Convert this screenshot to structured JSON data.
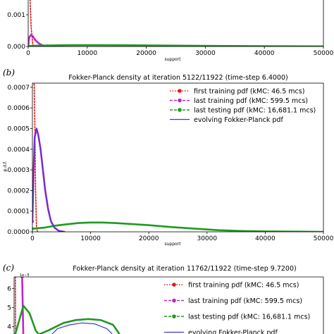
{
  "chart_data": [
    {
      "id": "a",
      "type": "line",
      "panel_label": "",
      "title": "",
      "xlabel": "support",
      "ylabel": "",
      "xlim": [
        0,
        50000
      ],
      "ylim": [
        0,
        0.0016
      ],
      "x_ticks": [
        0,
        10000,
        20000,
        30000,
        40000,
        50000
      ],
      "x_tick_labels": [
        "0",
        "10000",
        "20000",
        "30000",
        "40000",
        "50000"
      ],
      "y_ticks": [
        0,
        0.001
      ],
      "y_tick_labels": [
        "0.000",
        "0.001"
      ],
      "legend": [],
      "series": [
        {
          "name": "",
          "color": "#e41a1c",
          "dash": "2,2",
          "x": [
            0,
            150,
            300,
            500,
            800,
            1000
          ],
          "y": [
            0.0016,
            0.0016,
            0.0016,
            0.0006,
            3e-05,
            0
          ]
        },
        {
          "name": "",
          "color": "#c026c7",
          "x": [
            0,
            200,
            500,
            800,
            1200,
            1800,
            2500,
            3500,
            4500,
            6000
          ],
          "y": [
            0.0001,
            0.0003,
            0.00037,
            0.00032,
            0.0002,
            0.0001,
            3e-05,
            5e-06,
            0,
            0
          ]
        },
        {
          "name": "",
          "color": "#1f9a1f",
          "x": [
            0,
            2000,
            6000,
            10000,
            16000,
            22000,
            30000,
            40000,
            50000
          ],
          "y": [
            1.5e-05,
            3e-05,
            4e-05,
            4.2e-05,
            4e-05,
            3.2e-05,
            2e-05,
            1e-05,
            5e-06
          ]
        }
      ]
    },
    {
      "id": "b",
      "type": "line",
      "panel_label": "(b)",
      "title": "Fokker-Planck density at iteration 5122/11922 (time-step 6.4000)",
      "xlabel": "support",
      "ylabel": "p.d.f.",
      "xlim": [
        0,
        50000
      ],
      "ylim": [
        0,
        0.00072
      ],
      "x_ticks": [
        0,
        10000,
        20000,
        30000,
        40000,
        50000
      ],
      "x_tick_labels": [
        "0",
        "10000",
        "20000",
        "30000",
        "40000",
        "50000"
      ],
      "y_ticks": [
        0,
        0.0001,
        0.0002,
        0.0003,
        0.0004,
        0.0005,
        0.0006,
        0.0007
      ],
      "y_tick_labels": [
        "0.0000",
        "0.0001",
        "0.0002",
        "0.0003",
        "0.0004",
        "0.0005",
        "0.0006",
        "0.0007"
      ],
      "legend": [
        {
          "label": "first training pdf (kMC: 46.5 mcs)",
          "color": "#e41a1c",
          "style": "dotted-marker"
        },
        {
          "label": "last training pdf (kMC: 599.5 mcs)",
          "color": "#c026c7",
          "style": "dashed-marker"
        },
        {
          "label": "last testing pdf (kMC: 16,681.1 mcs)",
          "color": "#1f9a1f",
          "style": "dashed-marker"
        },
        {
          "label": "evolving Fokker-Planck pdf",
          "color": "#3a3ad0",
          "style": "solid"
        }
      ],
      "series": [
        {
          "name": "first training pdf (kMC: 46.5 mcs)",
          "color": "#e41a1c",
          "dash": "2,2",
          "x": [
            0,
            150,
            300,
            420,
            550,
            700,
            900
          ],
          "y": [
            0.00072,
            0.00072,
            0.00072,
            0.0005,
            0.0002,
            2e-05,
            0
          ]
        },
        {
          "name": "last training pdf (kMC: 599.5 mcs)",
          "color": "#c026c7",
          "x": [
            0,
            200,
            400,
            700,
            1000,
            1400,
            1800,
            2200,
            2700,
            3200,
            3800,
            4500,
            5500
          ],
          "y": [
            5e-05,
            0.0003,
            0.00046,
            0.0005,
            0.00047,
            0.0004,
            0.0003,
            0.0002,
            0.00011,
            5e-05,
            2e-05,
            5e-06,
            0
          ]
        },
        {
          "name": "last testing pdf (kMC: 16,681.1 mcs)",
          "color": "#1f9a1f",
          "x": [
            0,
            2000,
            4000,
            6000,
            8000,
            10000,
            12000,
            14000,
            17000,
            20000,
            24000,
            28000,
            32000,
            36000,
            40000,
            45000,
            50000
          ],
          "y": [
            1.5e-05,
            2e-05,
            3e-05,
            3.7e-05,
            4.3e-05,
            4.5e-05,
            4.5e-05,
            4.3e-05,
            3.8e-05,
            3.2e-05,
            2.3e-05,
            1.5e-05,
            8e-06,
            4e-06,
            2e-06,
            1e-06,
            0
          ]
        },
        {
          "name": "evolving Fokker-Planck pdf",
          "color": "#3a3ad0",
          "x": [
            0,
            200,
            400,
            700,
            1000,
            1400,
            1800,
            2200,
            2700,
            3200,
            3800,
            4500,
            5500
          ],
          "y": [
            5e-05,
            0.0003,
            0.00046,
            0.0005,
            0.00047,
            0.0004,
            0.0003,
            0.0002,
            0.00011,
            5e-05,
            2e-05,
            5e-06,
            0
          ]
        }
      ]
    },
    {
      "id": "c",
      "type": "line",
      "panel_label": "(c)",
      "title": "Fokker-Planck density at iteration 11762/11922 (time-step 9.7200)",
      "xlabel": "",
      "ylabel": "",
      "y_multiplier": "1e−5",
      "xlim": [
        0,
        50000
      ],
      "ylim": [
        3.4,
        6.6
      ],
      "x_ticks": [],
      "x_tick_labels": [],
      "y_ticks": [
        4,
        5,
        6
      ],
      "y_tick_labels": [
        "4",
        "5",
        "6"
      ],
      "legend": [
        {
          "label": "first training pdf (kMC: 46.5 mcs)",
          "color": "#e41a1c",
          "style": "dotted-marker"
        },
        {
          "label": "last training pdf (kMC: 599.5 mcs)",
          "color": "#c026c7",
          "style": "dashed-marker"
        },
        {
          "label": "last testing pdf (kMC: 16,681.1 mcs)",
          "color": "#1f9a1f",
          "style": "dashed-marker"
        },
        {
          "label": "evolving Fokker-Planck pdf",
          "color": "#3a3ad0",
          "style": "solid"
        }
      ],
      "series": [
        {
          "name": "first training pdf (kMC: 46.5 mcs)",
          "color": "#e41a1c",
          "dash": "2,2",
          "x": [
            200,
            250
          ],
          "y": [
            6.6,
            3.4
          ]
        },
        {
          "name": "last training pdf (kMC: 599.5 mcs)",
          "color": "#c026c7",
          "x": [
            1300,
            1400,
            1500
          ],
          "y": [
            6.6,
            5.0,
            3.4
          ]
        },
        {
          "name": "last testing pdf (kMC: 16,681.1 mcs)",
          "color": "#1f9a1f",
          "x": [
            0,
            1500,
            2500,
            3500,
            4000,
            5500,
            8000,
            10000,
            12000,
            14000,
            16000,
            17500
          ],
          "y": [
            3.4,
            5.1,
            4.7,
            3.8,
            3.6,
            3.8,
            4.2,
            4.35,
            4.4,
            4.35,
            4.1,
            3.4
          ]
        },
        {
          "name": "evolving Fokker-Planck pdf",
          "color": "#3a3ad0",
          "x": [
            5500,
            7000,
            9000,
            11000,
            13000,
            15000,
            16500
          ],
          "y": [
            3.4,
            3.9,
            4.1,
            4.2,
            4.15,
            3.9,
            3.4
          ]
        }
      ]
    }
  ]
}
